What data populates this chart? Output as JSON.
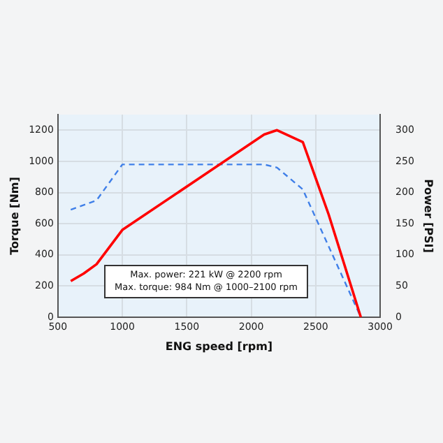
{
  "chart_data": {
    "type": "line",
    "xlabel": "ENG speed [rpm]",
    "ylabel": "Torque [Nm]",
    "y2label": "Power [PSI]",
    "series": [
      {
        "color": "#ff0000",
        "axis": "y2",
        "line_style": "solid",
        "x": [
          600,
          700,
          800,
          1000,
          2100,
          2200,
          2400,
          2600,
          2850
        ],
        "values": [
          58,
          70,
          85,
          140,
          293,
          300,
          281,
          165,
          0
        ]
      },
      {
        "color": "#3f7fe8",
        "axis": "y",
        "line_style": "dashed",
        "x": [
          600,
          800,
          1000,
          2100,
          2200,
          2400,
          2850
        ],
        "values": [
          690,
          750,
          980,
          980,
          960,
          820,
          0
        ]
      }
    ],
    "xlim": [
      500,
      3000
    ],
    "xticks": [
      500,
      1000,
      1500,
      2000,
      2500,
      3000
    ],
    "ylim": [
      0,
      1300
    ],
    "yticks": [
      0,
      200,
      400,
      600,
      800,
      1000,
      1200
    ],
    "y2lim": [
      0,
      325
    ],
    "y2ticks": [
      0,
      50,
      100,
      150,
      200,
      250,
      300
    ],
    "grid": true,
    "legend": false,
    "marker": "none",
    "annotations": [
      "Max. power: 221 kW @ 2200 rpm",
      "Max. torque: 984 Nm @ 1000–2100 rpm"
    ]
  }
}
